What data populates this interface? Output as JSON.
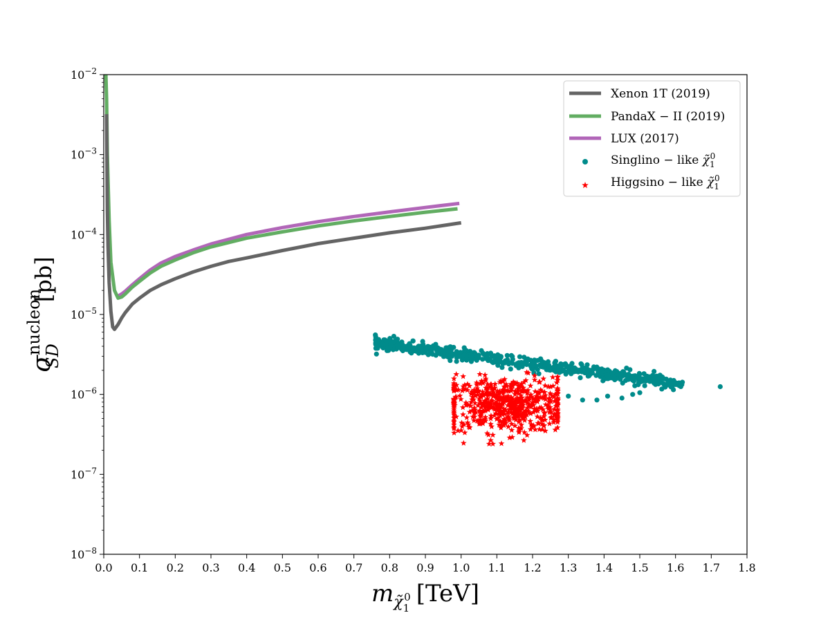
{
  "chart_data": {
    "type": "scatter",
    "xlabel": {
      "base": "m",
      "subscript": "χ̃",
      "subsub": "1",
      "subsup": "0",
      "unit": "[TeV]"
    },
    "ylabel": {
      "base": "σ",
      "superscript": "nucleon",
      "subscript": "SD",
      "unit": "[pb]"
    },
    "xlim": [
      0.0,
      1.8
    ],
    "ylim": [
      1e-08,
      0.01
    ],
    "yscale": "log",
    "x_ticks": [
      "0.0",
      "0.1",
      "0.2",
      "0.3",
      "0.4",
      "0.5",
      "0.6",
      "0.7",
      "0.8",
      "0.9",
      "1.0",
      "1.1",
      "1.2",
      "1.3",
      "1.4",
      "1.5",
      "1.6",
      "1.7",
      "1.8"
    ],
    "y_ticks": [
      {
        "exp": -8,
        "label_base": "10",
        "label_exp": "−8"
      },
      {
        "exp": -7,
        "label_base": "10",
        "label_exp": "−7"
      },
      {
        "exp": -6,
        "label_base": "10",
        "label_exp": "−6"
      },
      {
        "exp": -5,
        "label_base": "10",
        "label_exp": "−5"
      },
      {
        "exp": -4,
        "label_base": "10",
        "label_exp": "−4"
      },
      {
        "exp": -3,
        "label_base": "10",
        "label_exp": "−3"
      },
      {
        "exp": -2,
        "label_base": "10",
        "label_exp": "−2"
      }
    ],
    "legend_position": "top-right",
    "grid": false,
    "lines": [
      {
        "name": "Xenon 1T (2019)",
        "color": "#646464",
        "x": [
          0.008,
          0.01,
          0.012,
          0.015,
          0.02,
          0.025,
          0.03,
          0.04,
          0.05,
          0.06,
          0.08,
          0.1,
          0.13,
          0.16,
          0.2,
          0.25,
          0.3,
          0.35,
          0.4,
          0.5,
          0.6,
          0.7,
          0.8,
          0.9,
          1.0
        ],
        "y": [
          0.0032,
          0.0002,
          7e-05,
          2.5e-05,
          1.1e-05,
          7e-06,
          6.5e-06,
          7.5e-06,
          9e-06,
          1.05e-05,
          1.35e-05,
          1.6e-05,
          2e-05,
          2.35e-05,
          2.8e-05,
          3.4e-05,
          4e-05,
          4.6e-05,
          5.1e-05,
          6.3e-05,
          7.7e-05,
          9e-05,
          0.000105,
          0.00012,
          0.00014
        ]
      },
      {
        "name": "PandaX − II (2019)",
        "color": "#62ad62",
        "x": [
          0.006,
          0.008,
          0.01,
          0.015,
          0.02,
          0.03,
          0.04,
          0.05,
          0.06,
          0.08,
          0.1,
          0.13,
          0.16,
          0.2,
          0.25,
          0.3,
          0.4,
          0.5,
          0.6,
          0.7,
          0.8,
          0.9,
          0.99
        ],
        "y": [
          0.01,
          0.005,
          0.001,
          0.00015,
          4.5e-05,
          2e-05,
          1.6e-05,
          1.65e-05,
          1.8e-05,
          2.2e-05,
          2.6e-05,
          3.3e-05,
          4e-05,
          4.8e-05,
          5.9e-05,
          7e-05,
          9e-05,
          0.000108,
          0.000128,
          0.000148,
          0.000168,
          0.00019,
          0.00021
        ]
      },
      {
        "name": "LUX (2017)",
        "color": "#b166b8",
        "x": [
          0.04,
          0.05,
          0.06,
          0.08,
          0.1,
          0.13,
          0.16,
          0.2,
          0.25,
          0.3,
          0.4,
          0.5,
          0.6,
          0.7,
          0.8,
          0.9,
          0.995
        ],
        "y": [
          1.7e-05,
          1.8e-05,
          1.95e-05,
          2.35e-05,
          2.8e-05,
          3.6e-05,
          4.4e-05,
          5.3e-05,
          6.4e-05,
          7.6e-05,
          0.0001,
          0.000122,
          0.000145,
          0.000168,
          0.000192,
          0.000218,
          0.000245
        ]
      }
    ],
    "scatter_series": [
      {
        "name": "Singlino − like χ̃10",
        "label_base": "Singlino − like ",
        "color": "#008b8b",
        "marker": "circle",
        "band_x": [
          0.76,
          1.62
        ],
        "band_logy_start": -5.36,
        "band_logy_end": -5.87,
        "band_width": 0.085,
        "count": 620,
        "extra_points": [
          [
            1.725,
            1.25e-06
          ],
          [
            1.6,
            1.35e-06
          ],
          [
            1.55,
            1.45e-06
          ],
          [
            1.38,
            8.5e-07
          ],
          [
            1.34,
            8.5e-07
          ],
          [
            1.3,
            9.5e-07
          ],
          [
            1.5,
            1.05e-06
          ],
          [
            1.48,
            1e-06
          ],
          [
            1.45,
            9e-07
          ],
          [
            1.41,
            9.5e-07
          ]
        ]
      },
      {
        "name": "Higgsino − like χ̃10",
        "label_base": "Higgsino − like ",
        "color": "#ff0000",
        "marker": "star",
        "center_x": 1.13,
        "center_logy": -6.13,
        "spread_x": 0.09,
        "spread_logy": 0.17,
        "xlim": [
          0.98,
          1.27
        ],
        "logy_lim": [
          -6.62,
          -5.55
        ],
        "count": 620
      }
    ]
  }
}
